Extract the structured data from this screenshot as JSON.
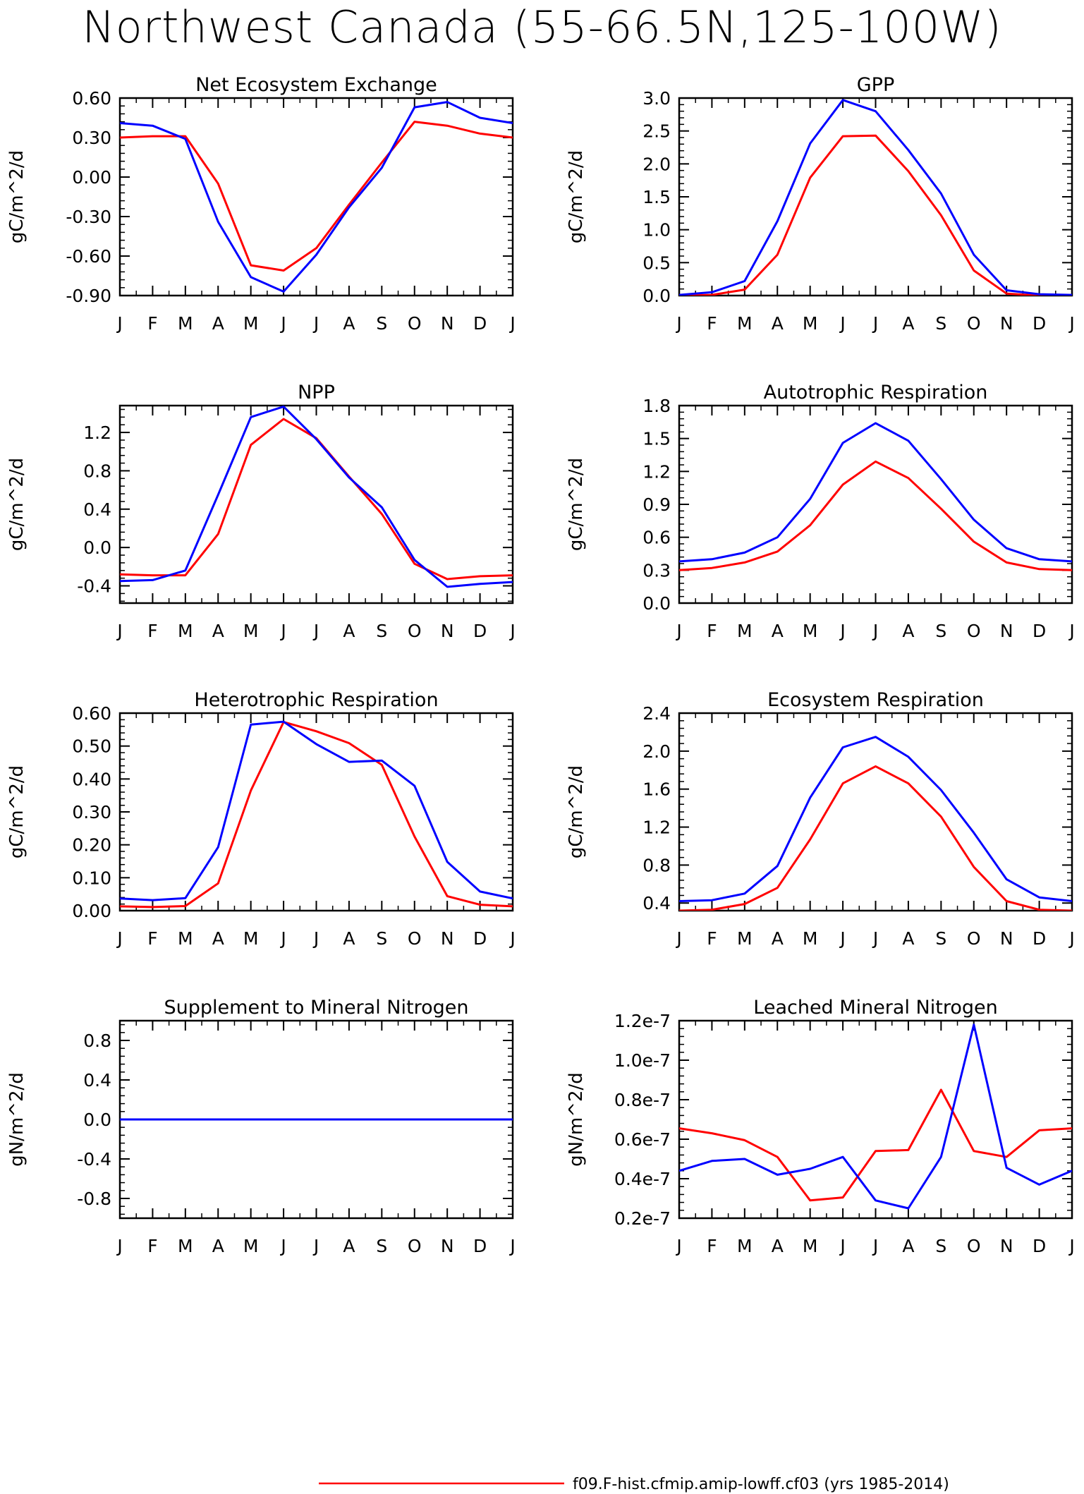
{
  "title": "Northwest Canada (55-66.5N,125-100W)",
  "legend": [
    {
      "label": "f09.F-hist.cfmip.amip-lowff.cf03 (yrs 1985-2014)",
      "color": "#ff0000"
    }
  ],
  "chart_data": [
    {
      "type": "line",
      "title": "Net Ecosystem Exchange",
      "ylabel": "gC/m^2/d",
      "categories": [
        "J",
        "F",
        "M",
        "A",
        "M",
        "J",
        "J",
        "A",
        "S",
        "O",
        "N",
        "D",
        "J"
      ],
      "ylim": [
        -0.9,
        0.6
      ],
      "yticks": [
        -0.9,
        -0.6,
        -0.3,
        0.0,
        0.3,
        0.6
      ],
      "ytick_labels": [
        "-0.90",
        "-0.60",
        "-0.30",
        "0.00",
        "0.30",
        "0.60"
      ],
      "series": [
        {
          "color": "#ff0000",
          "values": [
            0.3,
            0.31,
            0.31,
            -0.05,
            -0.67,
            -0.71,
            -0.54,
            -0.21,
            0.11,
            0.42,
            0.39,
            0.33,
            0.3
          ]
        },
        {
          "color": "#0000ff",
          "values": [
            0.41,
            0.39,
            0.29,
            -0.34,
            -0.76,
            -0.87,
            -0.59,
            -0.23,
            0.07,
            0.53,
            0.57,
            0.45,
            0.41
          ]
        }
      ]
    },
    {
      "type": "line",
      "title": "GPP",
      "ylabel": "gC/m^2/d",
      "categories": [
        "J",
        "F",
        "M",
        "A",
        "M",
        "J",
        "J",
        "A",
        "S",
        "O",
        "N",
        "D",
        "J"
      ],
      "ylim": [
        0.0,
        3.0
      ],
      "yticks": [
        0.0,
        0.5,
        1.0,
        1.5,
        2.0,
        2.5,
        3.0
      ],
      "ytick_labels": [
        "0.0",
        "0.5",
        "1.0",
        "1.5",
        "2.0",
        "2.5",
        "3.0"
      ],
      "series": [
        {
          "color": "#ff0000",
          "values": [
            0.0,
            0.01,
            0.09,
            0.62,
            1.79,
            2.42,
            2.43,
            1.89,
            1.22,
            0.38,
            0.03,
            0.0,
            0.0
          ]
        },
        {
          "color": "#0000ff",
          "values": [
            0.01,
            0.05,
            0.22,
            1.13,
            2.31,
            2.97,
            2.8,
            2.21,
            1.55,
            0.62,
            0.08,
            0.02,
            0.01
          ]
        }
      ]
    },
    {
      "type": "line",
      "title": "NPP",
      "ylabel": "gC/m^2/d",
      "categories": [
        "J",
        "F",
        "M",
        "A",
        "M",
        "J",
        "J",
        "A",
        "S",
        "O",
        "N",
        "D",
        "J"
      ],
      "ylim": [
        -0.58,
        1.48
      ],
      "yticks": [
        -0.4,
        0.0,
        0.4,
        0.8,
        1.2
      ],
      "ytick_labels": [
        "-0.4",
        "0.0",
        "0.4",
        "0.8",
        "1.2"
      ],
      "series": [
        {
          "color": "#ff0000",
          "values": [
            -0.28,
            -0.29,
            -0.29,
            0.14,
            1.07,
            1.34,
            1.14,
            0.74,
            0.35,
            -0.17,
            -0.33,
            -0.3,
            -0.29
          ]
        },
        {
          "color": "#0000ff",
          "values": [
            -0.35,
            -0.34,
            -0.24,
            0.55,
            1.36,
            1.47,
            1.13,
            0.73,
            0.42,
            -0.13,
            -0.41,
            -0.38,
            -0.36
          ]
        }
      ]
    },
    {
      "type": "line",
      "title": "Autotrophic Respiration",
      "ylabel": "gC/m^2/d",
      "categories": [
        "J",
        "F",
        "M",
        "A",
        "M",
        "J",
        "J",
        "A",
        "S",
        "O",
        "N",
        "D",
        "J"
      ],
      "ylim": [
        0.0,
        1.8
      ],
      "yticks": [
        0.0,
        0.3,
        0.6,
        0.9,
        1.2,
        1.5,
        1.8
      ],
      "ytick_labels": [
        "0.0",
        "0.3",
        "0.6",
        "0.9",
        "1.2",
        "1.5",
        "1.8"
      ],
      "series": [
        {
          "color": "#ff0000",
          "values": [
            0.3,
            0.32,
            0.37,
            0.47,
            0.71,
            1.08,
            1.29,
            1.14,
            0.86,
            0.56,
            0.37,
            0.31,
            0.3
          ]
        },
        {
          "color": "#0000ff",
          "values": [
            0.38,
            0.4,
            0.46,
            0.6,
            0.95,
            1.46,
            1.64,
            1.48,
            1.13,
            0.76,
            0.5,
            0.4,
            0.38
          ]
        }
      ]
    },
    {
      "type": "line",
      "title": "Heterotrophic Respiration",
      "ylabel": "gC/m^2/d",
      "categories": [
        "J",
        "F",
        "M",
        "A",
        "M",
        "J",
        "J",
        "A",
        "S",
        "O",
        "N",
        "D",
        "J"
      ],
      "ylim": [
        0.0,
        0.6
      ],
      "yticks": [
        0.0,
        0.1,
        0.2,
        0.3,
        0.4,
        0.5,
        0.6
      ],
      "ytick_labels": [
        "0.00",
        "0.10",
        "0.20",
        "0.30",
        "0.40",
        "0.50",
        "0.60"
      ],
      "series": [
        {
          "color": "#ff0000",
          "values": [
            0.013,
            0.011,
            0.014,
            0.083,
            0.365,
            0.573,
            0.545,
            0.509,
            0.443,
            0.225,
            0.044,
            0.018,
            0.013
          ]
        },
        {
          "color": "#0000ff",
          "values": [
            0.037,
            0.032,
            0.038,
            0.193,
            0.565,
            0.574,
            0.506,
            0.452,
            0.456,
            0.379,
            0.148,
            0.058,
            0.037
          ]
        }
      ]
    },
    {
      "type": "line",
      "title": "Ecosystem Respiration",
      "ylabel": "gC/m^2/d",
      "categories": [
        "J",
        "F",
        "M",
        "A",
        "M",
        "J",
        "J",
        "A",
        "S",
        "O",
        "N",
        "D",
        "J"
      ],
      "ylim": [
        0.32,
        2.4
      ],
      "yticks": [
        0.4,
        0.8,
        1.2,
        1.6,
        2.0,
        2.4
      ],
      "ytick_labels": [
        "0.4",
        "0.8",
        "1.2",
        "1.6",
        "2.0",
        "2.4"
      ],
      "series": [
        {
          "color": "#ff0000",
          "values": [
            0.32,
            0.33,
            0.39,
            0.56,
            1.07,
            1.66,
            1.84,
            1.66,
            1.31,
            0.78,
            0.42,
            0.33,
            0.32
          ]
        },
        {
          "color": "#0000ff",
          "values": [
            0.42,
            0.43,
            0.5,
            0.79,
            1.51,
            2.04,
            2.15,
            1.94,
            1.59,
            1.14,
            0.65,
            0.46,
            0.42
          ]
        }
      ]
    },
    {
      "type": "line",
      "title": "Supplement to Mineral Nitrogen",
      "ylabel": "gN/m^2/d",
      "categories": [
        "J",
        "F",
        "M",
        "A",
        "M",
        "J",
        "J",
        "A",
        "S",
        "O",
        "N",
        "D",
        "J"
      ],
      "ylim": [
        -1.0,
        1.0
      ],
      "yticks": [
        -0.8,
        -0.4,
        0.0,
        0.4,
        0.8
      ],
      "ytick_labels": [
        "-0.8",
        "-0.4",
        "0.0",
        "0.4",
        "0.8"
      ],
      "series": [
        {
          "color": "#ff0000",
          "values": [
            0,
            0,
            0,
            0,
            0,
            0,
            0,
            0,
            0,
            0,
            0,
            0,
            0
          ]
        },
        {
          "color": "#0000ff",
          "values": [
            0,
            0,
            0,
            0,
            0,
            0,
            0,
            0,
            0,
            0,
            0,
            0,
            0
          ]
        }
      ]
    },
    {
      "type": "line",
      "title": "Leached Mineral Nitrogen",
      "ylabel": "gN/m^2/d",
      "categories": [
        "J",
        "F",
        "M",
        "A",
        "M",
        "J",
        "J",
        "A",
        "S",
        "O",
        "N",
        "D",
        "J"
      ],
      "ylim": [
        2e-08,
        1.2e-07
      ],
      "yticks": [
        2e-08,
        4e-08,
        6e-08,
        8e-08,
        1e-07,
        1.2e-07
      ],
      "ytick_labels": [
        "0.2e-7",
        "0.4e-7",
        "0.6e-7",
        "0.8e-7",
        "1.0e-7",
        "1.2e-7"
      ],
      "series": [
        {
          "color": "#ff0000",
          "values": [
            6.55e-08,
            6.3e-08,
            5.95e-08,
            5.1e-08,
            2.9e-08,
            3.05e-08,
            5.4e-08,
            5.45e-08,
            8.5e-08,
            5.4e-08,
            5.1e-08,
            6.45e-08,
            6.55e-08
          ]
        },
        {
          "color": "#0000ff",
          "values": [
            4.4e-08,
            4.9e-08,
            5e-08,
            4.2e-08,
            4.5e-08,
            5.1e-08,
            2.9e-08,
            2.5e-08,
            5.1e-08,
            1.18e-07,
            4.55e-08,
            3.7e-08,
            4.4e-08
          ]
        }
      ]
    }
  ]
}
